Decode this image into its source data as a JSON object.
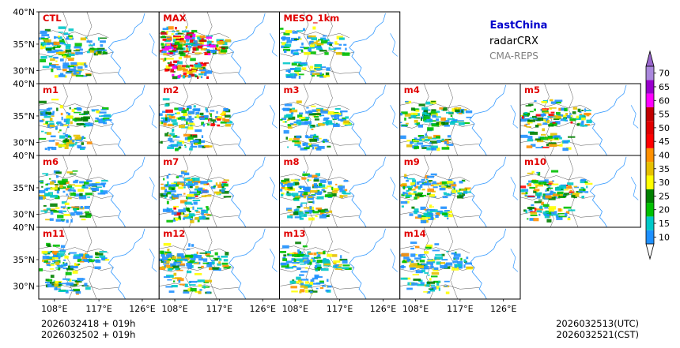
{
  "header": {
    "region": "EastChina",
    "variable": "radarCRX",
    "system": "CMA-REPS",
    "colors": {
      "region": "#0000cc",
      "variable": "#000000",
      "system": "#808080",
      "panel_label": "#e00000"
    }
  },
  "panels": [
    {
      "label": "CTL",
      "intensity": 0.45
    },
    {
      "label": "MAX",
      "intensity": 1.0
    },
    {
      "label": "MESO_1km",
      "intensity": 0.35
    },
    {
      "label": "m1",
      "intensity": 0.45
    },
    {
      "label": "m2",
      "intensity": 0.55
    },
    {
      "label": "m3",
      "intensity": 0.4
    },
    {
      "label": "m4",
      "intensity": 0.5
    },
    {
      "label": "m5",
      "intensity": 0.55
    },
    {
      "label": "m6",
      "intensity": 0.45
    },
    {
      "label": "m7",
      "intensity": 0.55
    },
    {
      "label": "m8",
      "intensity": 0.5
    },
    {
      "label": "m9",
      "intensity": 0.5
    },
    {
      "label": "m10",
      "intensity": 0.55
    },
    {
      "label": "m11",
      "intensity": 0.45
    },
    {
      "label": "m12",
      "intensity": 0.5
    },
    {
      "label": "m13",
      "intensity": 0.45
    },
    {
      "label": "m14",
      "intensity": 0.4
    }
  ],
  "axes": {
    "lat_ticks": [
      "40°N",
      "35°N",
      "30°N"
    ],
    "lon_ticks": [
      "108°E",
      "117°E",
      "126°E"
    ]
  },
  "colorbar": {
    "levels": [
      "10",
      "15",
      "20",
      "25",
      "30",
      "35",
      "40",
      "45",
      "50",
      "55",
      "60",
      "65",
      "70"
    ],
    "colors": [
      "#1e90ff",
      "#00c8c8",
      "#00c000",
      "#008000",
      "#ffff00",
      "#e6c000",
      "#ff9000",
      "#ff0000",
      "#e00000",
      "#c00000",
      "#ff00ff",
      "#9900cc",
      "#aa88dd",
      "#9966cc"
    ]
  },
  "footer": {
    "init_line1": "2026032418  +  019h",
    "init_line2": "2026032502  +  019h",
    "valid_utc": "2026032513(UTC)",
    "valid_cst": "2026032521(CST)"
  }
}
